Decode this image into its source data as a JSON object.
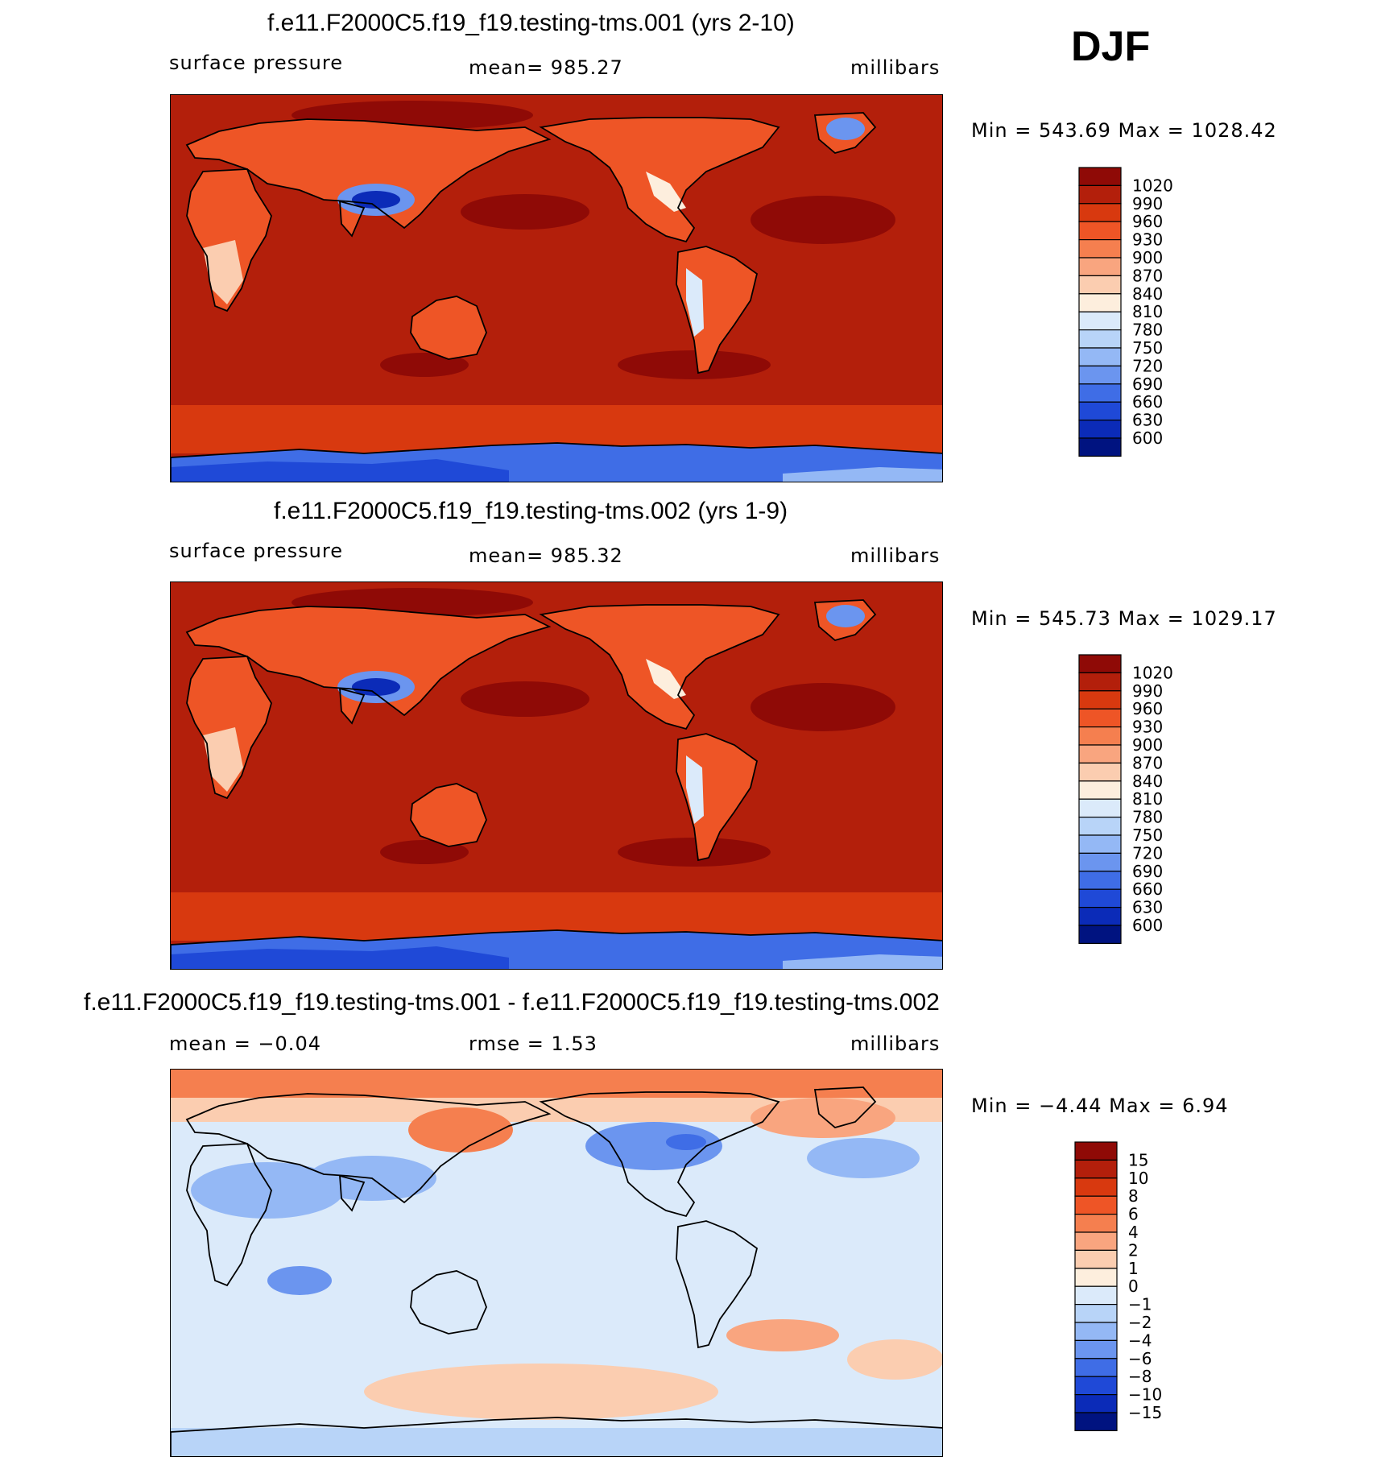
{
  "season": "DJF",
  "panels": [
    {
      "title": "f.e11.F2000C5.f19_f19.testing-tms.001 (yrs 2-10)",
      "left_label": "surface pressure",
      "center_label": "mean=  985.27",
      "right_label": "millibars",
      "minmax": "Min  =  543.69  Max  =  1028.42",
      "kind": "abs"
    },
    {
      "title": "f.e11.F2000C5.f19_f19.testing-tms.002 (yrs 1-9)",
      "left_label": "surface pressure",
      "center_label": "mean=  985.32",
      "right_label": "millibars",
      "minmax": "Min  =  545.73  Max  =  1029.17",
      "kind": "abs"
    },
    {
      "title": "f.e11.F2000C5.f19_f19.testing-tms.001 - f.e11.F2000C5.f19_f19.testing-tms.002",
      "left_label": "mean  =   −0.04",
      "center_label": "rmse  =     1.53",
      "right_label": "millibars",
      "minmax": "Min  =   −4.44  Max  =     6.94",
      "kind": "diff"
    }
  ],
  "colorbars": {
    "abs": {
      "labels": [
        "1020",
        "990",
        "960",
        "930",
        "900",
        "870",
        "840",
        "810",
        "780",
        "750",
        "720",
        "690",
        "660",
        "630",
        "600"
      ],
      "colors": [
        "#8f0a06",
        "#b31f0b",
        "#d8390f",
        "#ee5526",
        "#f57f4f",
        "#f9a57f",
        "#fbcdb0",
        "#fdeedd",
        "#dbeafa",
        "#b8d4f8",
        "#94b8f5",
        "#6b95ef",
        "#3f6de6",
        "#1f49d7",
        "#0b2bb8",
        "#001380"
      ]
    },
    "diff": {
      "labels": [
        "15",
        "10",
        "8",
        "6",
        "4",
        "2",
        "1",
        "0",
        "−1",
        "−2",
        "−4",
        "−6",
        "−8",
        "−10",
        "−15"
      ],
      "colors": [
        "#8f0a06",
        "#b31f0b",
        "#d8390f",
        "#ee5526",
        "#f57f4f",
        "#f9a57f",
        "#fbcdb0",
        "#fdeedd",
        "#dbeafa",
        "#b8d4f8",
        "#94b8f5",
        "#6b95ef",
        "#3f6de6",
        "#1f49d7",
        "#0b2bb8",
        "#001380"
      ]
    }
  },
  "chart_data": [
    {
      "type": "heatmap",
      "title": "f.e11.F2000C5.f19_f19.testing-tms.001 (yrs 2-10)",
      "variable": "surface pressure",
      "units": "millibars",
      "mean": 985.27,
      "min": 543.69,
      "max": 1028.42,
      "contour_levels": [
        600,
        630,
        660,
        690,
        720,
        750,
        780,
        810,
        840,
        870,
        900,
        930,
        960,
        990,
        1020
      ]
    },
    {
      "type": "heatmap",
      "title": "f.e11.F2000C5.f19_f19.testing-tms.002 (yrs 1-9)",
      "variable": "surface pressure",
      "units": "millibars",
      "mean": 985.32,
      "min": 545.73,
      "max": 1029.17,
      "contour_levels": [
        600,
        630,
        660,
        690,
        720,
        750,
        780,
        810,
        840,
        870,
        900,
        930,
        960,
        990,
        1020
      ]
    },
    {
      "type": "heatmap",
      "title": "f.e11.F2000C5.f19_f19.testing-tms.001 - f.e11.F2000C5.f19_f19.testing-tms.002",
      "units": "millibars",
      "mean": -0.04,
      "rmse": 1.53,
      "min": -4.44,
      "max": 6.94,
      "contour_levels": [
        -15,
        -10,
        -8,
        -6,
        -4,
        -2,
        -1,
        0,
        1,
        2,
        4,
        6,
        8,
        10,
        15
      ]
    }
  ]
}
